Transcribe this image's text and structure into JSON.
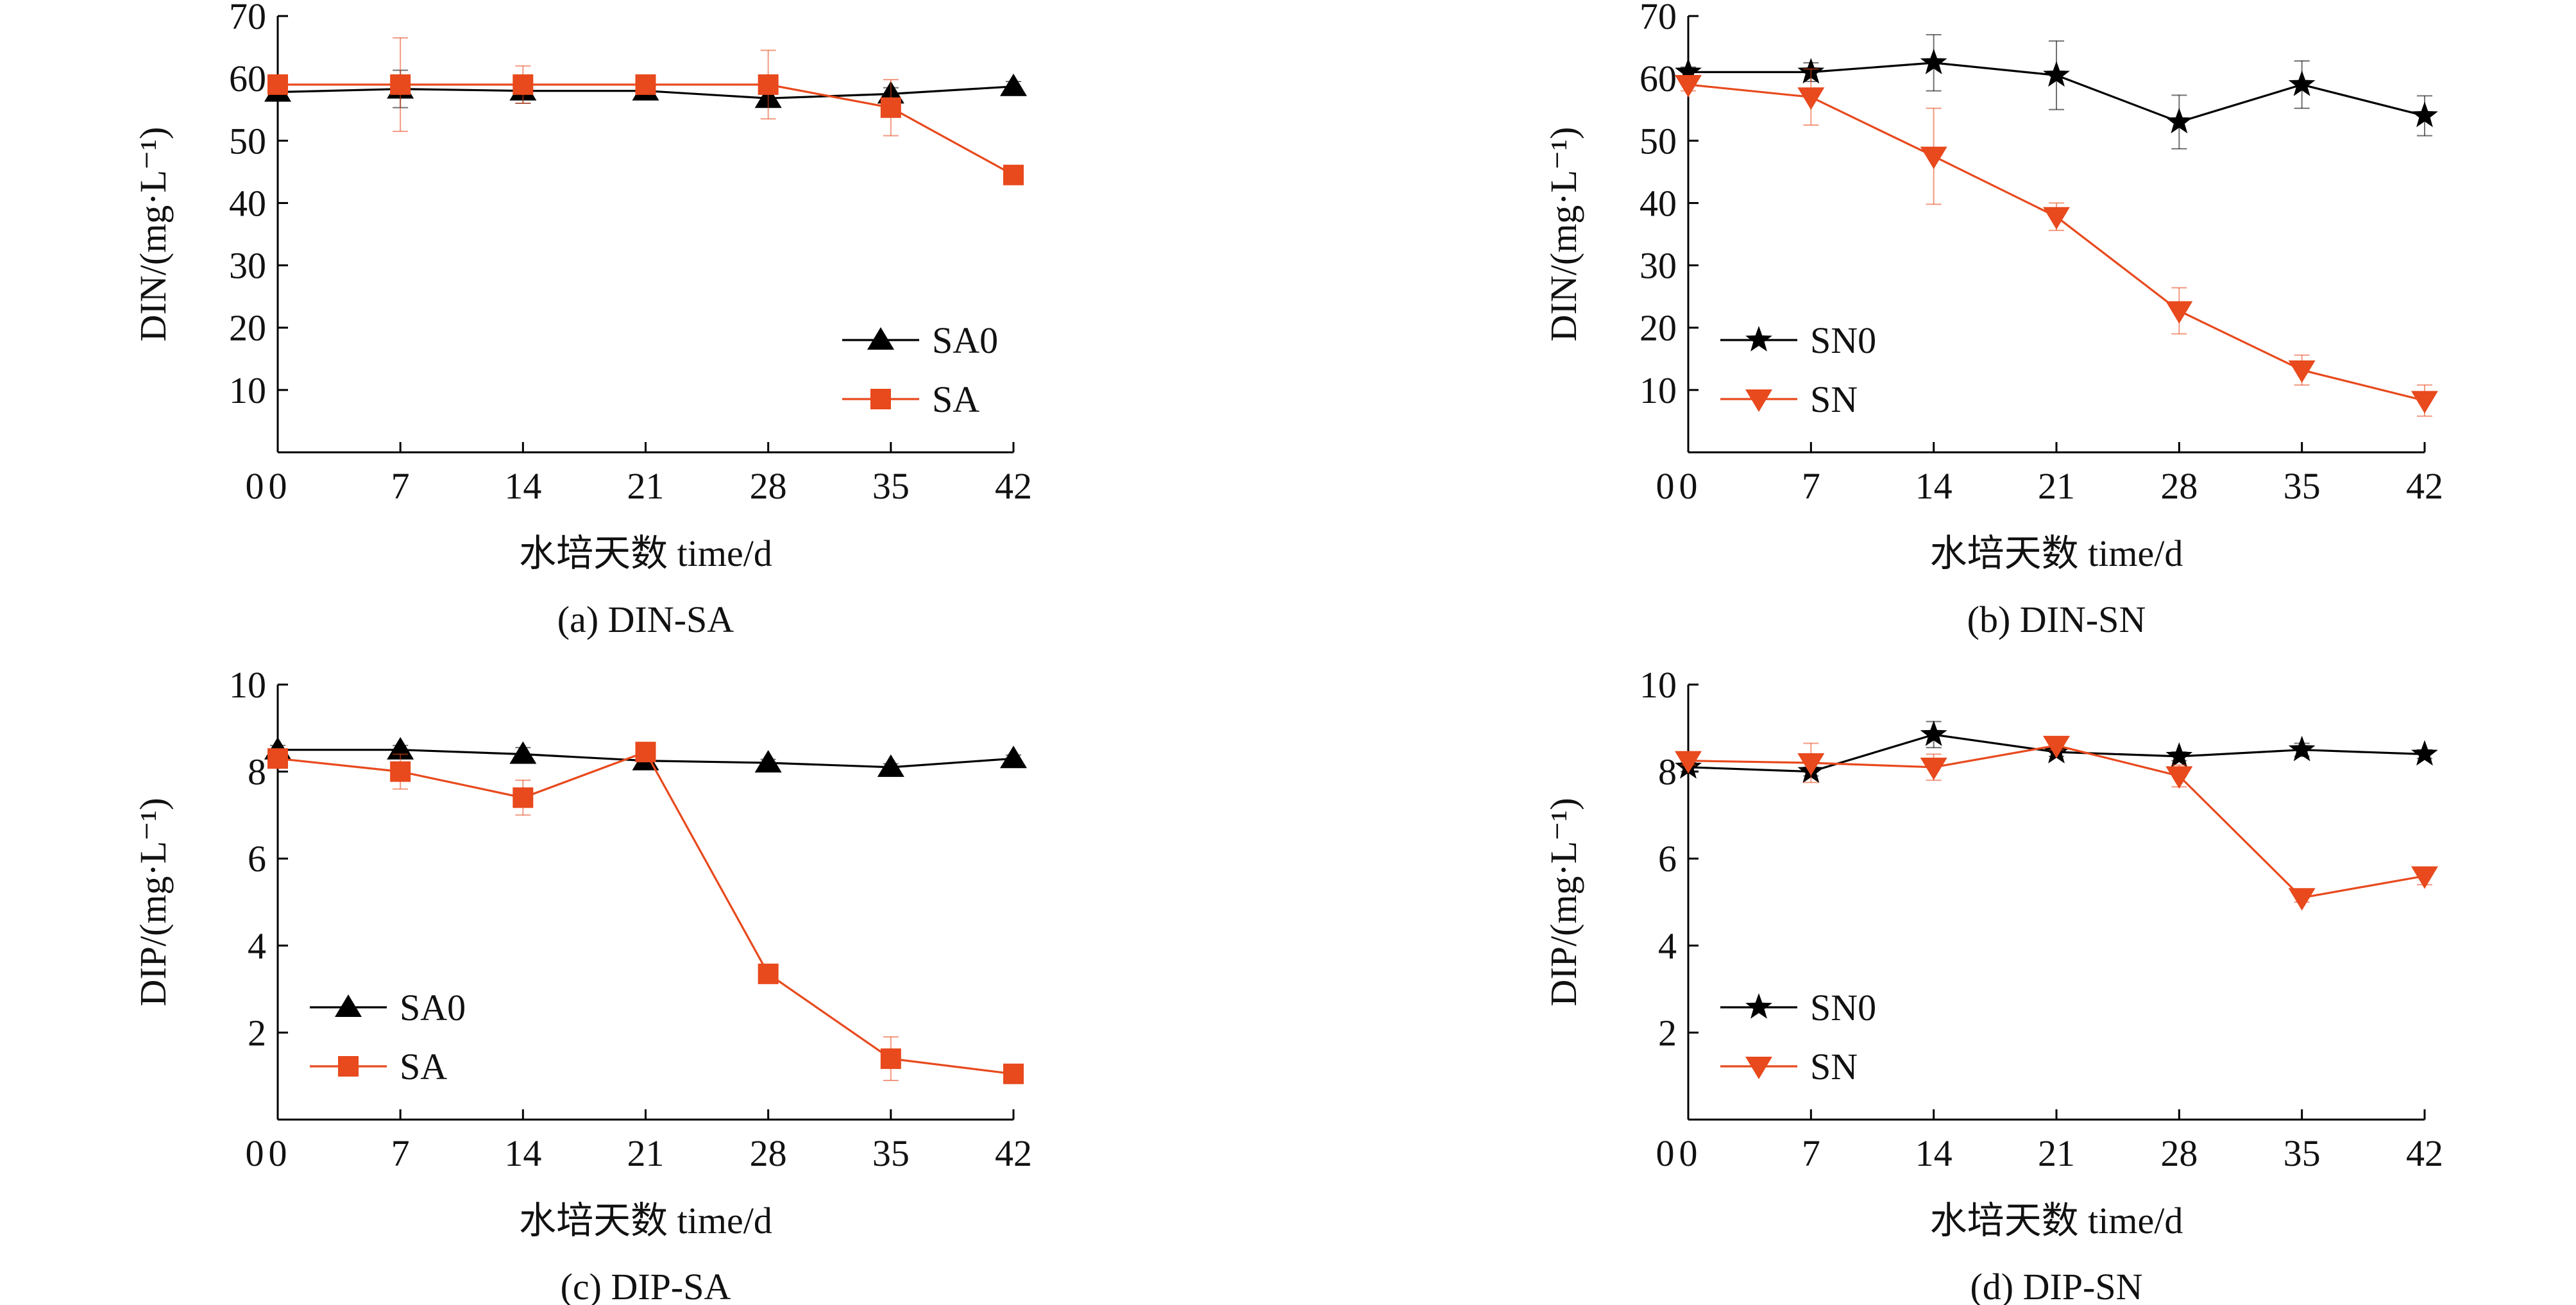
{
  "figure_colors": {
    "control": "#000000",
    "treatment": "#E8491D"
  },
  "chart_data": [
    {
      "id": "a",
      "type": "line",
      "caption": "(a) DIN-SA",
      "xlabel": "水培天数 time/d",
      "ylabel": "DIN/(mg·L⁻¹)",
      "ylim": [
        0,
        70
      ],
      "xlim": [
        0,
        42
      ],
      "xticks": [
        0,
        7,
        14,
        21,
        28,
        35,
        42
      ],
      "yticks": [
        10,
        20,
        30,
        40,
        50,
        60,
        70
      ],
      "y_zero_label": "0",
      "legend_position": "bottom-right",
      "series": [
        {
          "name": "SA0",
          "marker": "triangle-up",
          "color": "#000000",
          "x": [
            0,
            7,
            14,
            21,
            28,
            35,
            42
          ],
          "y": [
            57.8,
            58.3,
            58.0,
            58.0,
            56.8,
            57.5,
            58.7
          ],
          "err": [
            1.0,
            3.0,
            2.0,
            1.0,
            1.0,
            1.0,
            0.8
          ]
        },
        {
          "name": "SA",
          "marker": "square",
          "color": "#E8491D",
          "x": [
            0,
            7,
            14,
            21,
            28,
            35,
            42
          ],
          "y": [
            59.0,
            59.0,
            59.0,
            59.0,
            59.0,
            55.3,
            44.5
          ],
          "err": [
            1.5,
            7.5,
            3.0,
            1.0,
            5.5,
            4.5,
            1.5
          ]
        }
      ]
    },
    {
      "id": "b",
      "type": "line",
      "caption": "(b) DIN-SN",
      "xlabel": "水培天数 time/d",
      "ylabel": "DIN/(mg·L⁻¹)",
      "ylim": [
        0,
        70
      ],
      "xlim": [
        0,
        42
      ],
      "xticks": [
        0,
        7,
        14,
        21,
        28,
        35,
        42
      ],
      "yticks": [
        10,
        20,
        30,
        40,
        50,
        60,
        70
      ],
      "y_zero_label": "0",
      "legend_position": "bottom-left",
      "series": [
        {
          "name": "SN0",
          "marker": "star",
          "color": "#000000",
          "x": [
            0,
            7,
            14,
            21,
            28,
            35,
            42
          ],
          "y": [
            61.0,
            61.0,
            62.5,
            60.5,
            53.0,
            59.0,
            54.0
          ],
          "err": [
            0.8,
            1.5,
            4.5,
            5.5,
            4.3,
            3.8,
            3.2
          ]
        },
        {
          "name": "SN",
          "marker": "triangle-down",
          "color": "#E8491D",
          "x": [
            0,
            7,
            14,
            21,
            28,
            35,
            42
          ],
          "y": [
            59.0,
            57.0,
            47.5,
            37.8,
            22.7,
            13.2,
            8.3
          ],
          "err": [
            1.0,
            4.5,
            7.7,
            2.2,
            3.7,
            2.4,
            2.5
          ]
        }
      ]
    },
    {
      "id": "c",
      "type": "line",
      "caption": "(c) DIP-SA",
      "xlabel": "水培天数 time/d",
      "ylabel": "DIP/(mg·L⁻¹)",
      "ylim": [
        0,
        10
      ],
      "xlim": [
        0,
        42
      ],
      "xticks": [
        0,
        7,
        14,
        21,
        28,
        35,
        42
      ],
      "yticks": [
        2,
        4,
        6,
        8,
        10
      ],
      "y_zero_label": "0",
      "legend_position": "bottom-left",
      "series": [
        {
          "name": "SA0",
          "marker": "triangle-up",
          "color": "#000000",
          "x": [
            0,
            7,
            14,
            21,
            28,
            35,
            42
          ],
          "y": [
            8.5,
            8.5,
            8.4,
            8.25,
            8.2,
            8.1,
            8.3
          ],
          "err": [
            0.1,
            0.1,
            0.15,
            0.1,
            0.08,
            0.08,
            0.08
          ]
        },
        {
          "name": "SA",
          "marker": "square",
          "color": "#E8491D",
          "x": [
            0,
            7,
            14,
            21,
            28,
            35,
            42
          ],
          "y": [
            8.3,
            8.0,
            7.4,
            8.45,
            3.35,
            1.4,
            1.05
          ],
          "err": [
            0.12,
            0.4,
            0.4,
            0.1,
            0.1,
            0.5,
            0.1
          ]
        }
      ]
    },
    {
      "id": "d",
      "type": "line",
      "caption": "(d) DIP-SN",
      "xlabel": "水培天数 time/d",
      "ylabel": "DIP/(mg·L⁻¹)",
      "ylim": [
        0,
        10
      ],
      "xlim": [
        0,
        42
      ],
      "xticks": [
        0,
        7,
        14,
        21,
        28,
        35,
        42
      ],
      "yticks": [
        2,
        4,
        6,
        8,
        10
      ],
      "y_zero_label": "0",
      "legend_position": "bottom-left",
      "series": [
        {
          "name": "SN0",
          "marker": "star",
          "color": "#000000",
          "x": [
            0,
            7,
            14,
            21,
            28,
            35,
            42
          ],
          "y": [
            8.1,
            8.0,
            8.85,
            8.45,
            8.35,
            8.5,
            8.4
          ],
          "err": [
            0.1,
            0.1,
            0.3,
            0.1,
            0.1,
            0.15,
            0.1
          ]
        },
        {
          "name": "SN",
          "marker": "triangle-down",
          "color": "#E8491D",
          "x": [
            0,
            7,
            14,
            21,
            28,
            35,
            42
          ],
          "y": [
            8.25,
            8.2,
            8.1,
            8.6,
            7.9,
            5.1,
            5.6
          ],
          "err": [
            0.1,
            0.45,
            0.3,
            0.1,
            0.25,
            0.1,
            0.2
          ]
        }
      ]
    }
  ]
}
